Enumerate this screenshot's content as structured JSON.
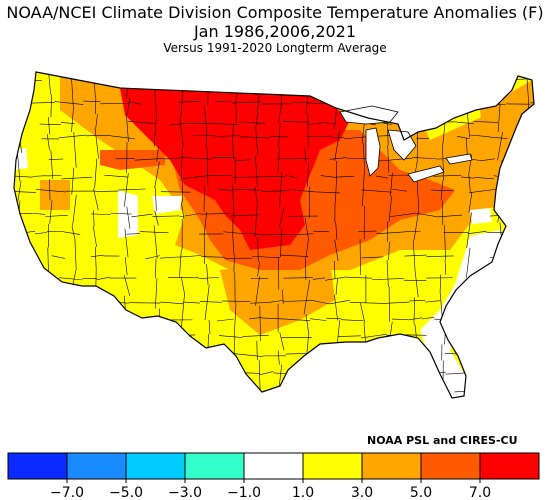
{
  "header": {
    "title_line1": "NOAA/NCEI Climate Division Composite Temperature Anomalies (F)",
    "title_line2": "Jan   1986,2006,2021",
    "title_line3": "Versus 1991-2020 Longterm Average"
  },
  "credit": "NOAA PSL and CIRES-CU",
  "legend": {
    "bins": [
      {
        "color": "#0a2aff"
      },
      {
        "color": "#1a8cff"
      },
      {
        "color": "#00ccff"
      },
      {
        "color": "#33ffcc"
      },
      {
        "color": "#ffffff"
      },
      {
        "color": "#ffff00"
      },
      {
        "color": "#ffa500"
      },
      {
        "color": "#ff5a00"
      },
      {
        "color": "#ff0000"
      }
    ],
    "ticks": [
      "−7.0",
      "−5.0",
      "−3.0",
      "−1.0",
      "1.0",
      "3.0",
      "5.0",
      "7.0"
    ]
  },
  "map_colors": {
    "white": "#ffffff",
    "yellow": "#ffff00",
    "orange": "#ffa500",
    "dark_orange": "#ff5a00",
    "red": "#ff0000"
  }
}
